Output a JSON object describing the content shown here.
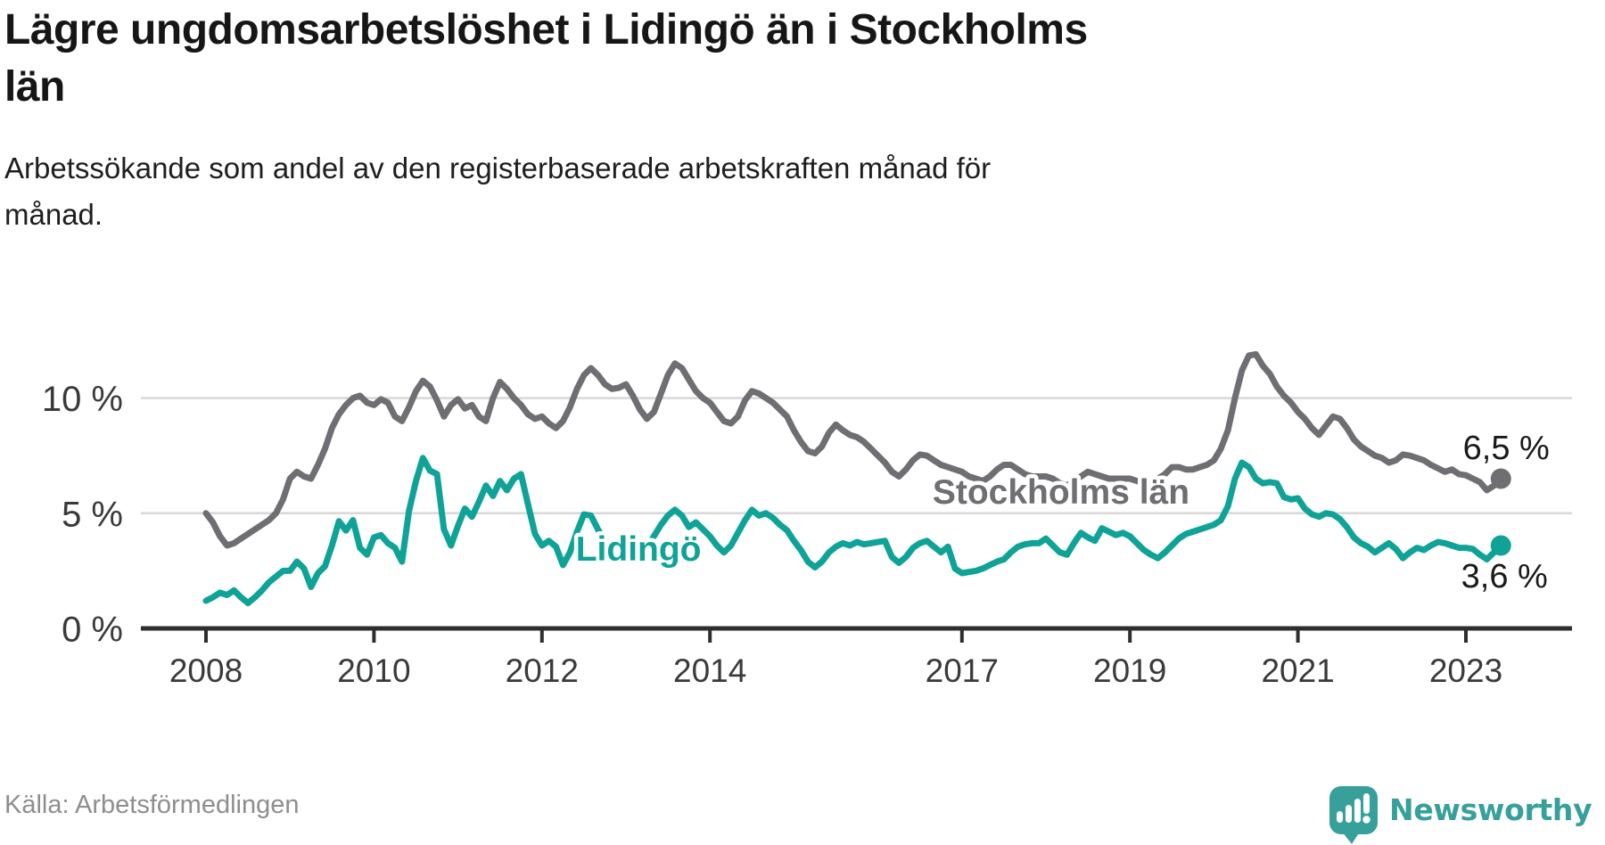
{
  "header": {
    "title_lines": [
      "Lägre ungdomsarbetslöshet i Lidingö än i Stockholms",
      "län"
    ],
    "subtitle_lines": [
      "Arbetssökande som andel av den registerbaserade arbetskraften månad för",
      "månad."
    ]
  },
  "footer": {
    "source": "Källa: Arbetsförmedlingen",
    "brand": "Newsworthy"
  },
  "colors": {
    "stockholm_gray": "#6F6F73",
    "lidingo_teal": "#0FA397",
    "grid": "#D8D8D8",
    "axis": "#2E2E2E",
    "tick_text": "#3A3A3A",
    "value_text": "#1A1A1A",
    "brand_teal": "#37A09B"
  },
  "chart_data": {
    "type": "line",
    "title": "Lägre ungdomsarbetslöshet i Lidingö än i Stockholms län",
    "subtitle": "Arbetssökande som andel av den registerbaserade arbetskraften månad för månad.",
    "xlabel": "",
    "ylabel": "",
    "x_start_year": 2008,
    "x_step_months": 1,
    "x_end": "2023-06",
    "ylim": [
      0,
      12.4
    ],
    "grid": "horizontal",
    "yticks": [
      {
        "value": 0,
        "label": "0 %"
      },
      {
        "value": 5,
        "label": "5 %"
      },
      {
        "value": 10,
        "label": "10 %"
      }
    ],
    "grid_values": [
      5,
      10
    ],
    "xticks": [
      {
        "year": 2008,
        "label": "2008"
      },
      {
        "year": 2010,
        "label": "2010"
      },
      {
        "year": 2012,
        "label": "2012"
      },
      {
        "year": 2014,
        "label": "2014"
      },
      {
        "year": 2017,
        "label": "2017"
      },
      {
        "year": 2019,
        "label": "2019"
      },
      {
        "year": 2021,
        "label": "2021"
      },
      {
        "year": 2023,
        "label": "2023"
      }
    ],
    "series": [
      {
        "name": "Stockholms län",
        "color": "#6F6F73",
        "end_label": "6,5 %",
        "end_value": 6.5,
        "end_label_offset": [
          2,
          -22
        ],
        "values": [
          5.0,
          4.6,
          4.0,
          3.6,
          3.7,
          3.9,
          4.1,
          4.3,
          4.5,
          4.7,
          5.0,
          5.6,
          6.5,
          6.8,
          6.6,
          6.5,
          7.1,
          7.8,
          8.7,
          9.3,
          9.7,
          10.0,
          10.1,
          9.8,
          9.7,
          9.95,
          9.8,
          9.2,
          9.0,
          9.6,
          10.3,
          10.75,
          10.5,
          9.9,
          9.2,
          9.7,
          9.95,
          9.55,
          9.7,
          9.2,
          9.0,
          10.0,
          10.7,
          10.4,
          10.0,
          9.7,
          9.3,
          9.1,
          9.2,
          8.9,
          8.7,
          9.0,
          9.6,
          10.4,
          11.0,
          11.3,
          11.0,
          10.6,
          10.4,
          10.45,
          10.6,
          10.1,
          9.5,
          9.1,
          9.4,
          10.2,
          11.0,
          11.5,
          11.3,
          10.8,
          10.3,
          10.0,
          9.8,
          9.4,
          9.0,
          8.9,
          9.2,
          9.9,
          10.3,
          10.2,
          10.0,
          9.8,
          9.5,
          9.2,
          8.6,
          8.1,
          7.7,
          7.6,
          7.9,
          8.5,
          8.85,
          8.6,
          8.4,
          8.3,
          8.1,
          7.8,
          7.5,
          7.2,
          6.8,
          6.6,
          6.9,
          7.3,
          7.55,
          7.5,
          7.3,
          7.1,
          7.0,
          6.9,
          6.8,
          6.6,
          6.5,
          6.4,
          6.6,
          6.9,
          7.1,
          7.1,
          6.9,
          6.7,
          6.6,
          6.6,
          6.6,
          6.5,
          6.3,
          6.2,
          6.4,
          6.6,
          6.8,
          6.7,
          6.6,
          6.5,
          6.5,
          6.5,
          6.5,
          6.4,
          6.3,
          6.3,
          6.5,
          6.7,
          7.0,
          7.0,
          6.9,
          6.9,
          7.0,
          7.1,
          7.3,
          7.8,
          8.6,
          10.0,
          11.2,
          11.85,
          11.9,
          11.4,
          11.05,
          10.5,
          10.1,
          9.8,
          9.4,
          9.1,
          8.7,
          8.4,
          8.8,
          9.2,
          9.1,
          8.7,
          8.2,
          7.9,
          7.7,
          7.5,
          7.4,
          7.2,
          7.3,
          7.55,
          7.5,
          7.4,
          7.3,
          7.1,
          6.95,
          6.8,
          6.9,
          6.7,
          6.65,
          6.5,
          6.35,
          6.0,
          6.2,
          6.5
        ]
      },
      {
        "name": "Lidingö",
        "color": "#0FA397",
        "end_label": "3,6 %",
        "end_value": 3.6,
        "end_label_offset": [
          0,
          47
        ],
        "values": [
          1.2,
          1.35,
          1.55,
          1.45,
          1.65,
          1.35,
          1.1,
          1.35,
          1.65,
          2.0,
          2.25,
          2.5,
          2.5,
          2.9,
          2.6,
          1.8,
          2.4,
          2.7,
          3.6,
          4.65,
          4.25,
          4.7,
          3.5,
          3.2,
          3.95,
          4.05,
          3.7,
          3.5,
          2.9,
          5.1,
          6.4,
          7.4,
          6.85,
          6.7,
          4.3,
          3.6,
          4.45,
          5.2,
          4.85,
          5.5,
          6.2,
          5.75,
          6.4,
          6.0,
          6.5,
          6.7,
          5.4,
          4.1,
          3.6,
          3.8,
          3.55,
          2.75,
          3.3,
          4.2,
          4.95,
          4.9,
          4.3,
          3.8,
          3.5,
          3.3,
          3.35,
          3.3,
          3.2,
          3.5,
          4.0,
          4.5,
          4.9,
          5.15,
          4.9,
          4.4,
          4.6,
          4.3,
          4.0,
          3.6,
          3.3,
          3.6,
          4.15,
          4.7,
          5.15,
          4.9,
          5.0,
          4.8,
          4.5,
          4.26,
          3.8,
          3.4,
          2.9,
          2.65,
          2.9,
          3.3,
          3.55,
          3.7,
          3.6,
          3.75,
          3.65,
          3.7,
          3.75,
          3.8,
          3.1,
          2.85,
          3.1,
          3.5,
          3.7,
          3.8,
          3.55,
          3.3,
          3.55,
          2.6,
          2.4,
          2.45,
          2.5,
          2.6,
          2.75,
          2.9,
          3.0,
          3.3,
          3.55,
          3.65,
          3.7,
          3.7,
          3.9,
          3.6,
          3.3,
          3.2,
          3.7,
          4.15,
          3.95,
          3.8,
          4.35,
          4.2,
          4.05,
          4.15,
          4.0,
          3.7,
          3.4,
          3.2,
          3.05,
          3.3,
          3.6,
          3.9,
          4.1,
          4.2,
          4.3,
          4.4,
          4.5,
          4.7,
          5.3,
          6.5,
          7.2,
          7.0,
          6.5,
          6.3,
          6.35,
          6.3,
          5.7,
          5.6,
          5.65,
          5.2,
          4.95,
          4.85,
          5.0,
          4.95,
          4.75,
          4.4,
          3.95,
          3.7,
          3.55,
          3.3,
          3.5,
          3.7,
          3.45,
          3.05,
          3.3,
          3.5,
          3.4,
          3.6,
          3.75,
          3.7,
          3.6,
          3.5,
          3.5,
          3.45,
          3.2,
          3.0,
          3.3,
          3.6
        ]
      }
    ],
    "series_annotations": [
      {
        "text": "Stockholms län",
        "x": 2018.18,
        "y": 5.92,
        "color": "#6F6F73"
      },
      {
        "text": "Lidingö",
        "x": 2013.15,
        "y": 3.44,
        "color": "#0FA397"
      }
    ],
    "legend": "inline-labels"
  }
}
